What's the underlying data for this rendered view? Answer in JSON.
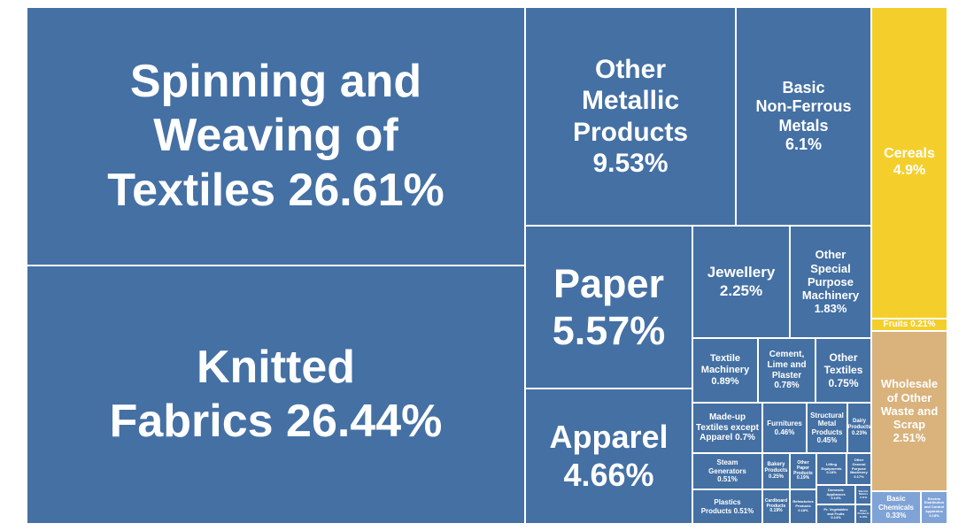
{
  "chart_data": {
    "type": "treemap",
    "unit": "%",
    "colors": {
      "manufacturing": "#4470a4",
      "agriculture": "#f4cf2c",
      "trade": "#d9b27c",
      "chemicals": "#7fa3d7"
    },
    "tiles": [
      {
        "id": "spinning",
        "label": "Spinning and\nWeaving of\nTextiles 26.61%",
        "value": 26.61,
        "group": "manufacturing"
      },
      {
        "id": "knitted",
        "label": "Knitted\nFabrics 26.44%",
        "value": 26.44,
        "group": "manufacturing"
      },
      {
        "id": "other-metallic",
        "label": "Other\nMetallic\nProducts\n9.53%",
        "value": 9.53,
        "group": "manufacturing"
      },
      {
        "id": "basic-non-ferrous",
        "label": "Basic\nNon-Ferrous\nMetals\n6.1%",
        "value": 6.1,
        "group": "manufacturing"
      },
      {
        "id": "paper",
        "label": "Paper\n5.57%",
        "value": 5.57,
        "group": "manufacturing"
      },
      {
        "id": "apparel",
        "label": "Apparel\n4.66%",
        "value": 4.66,
        "group": "manufacturing"
      },
      {
        "id": "jewellery",
        "label": "Jewellery\n2.25%",
        "value": 2.25,
        "group": "manufacturing"
      },
      {
        "id": "special-machinery",
        "label": "Other\nSpecial\nPurpose\nMachinery\n1.83%",
        "value": 1.83,
        "group": "manufacturing"
      },
      {
        "id": "textile-machinery",
        "label": "Textile\nMachinery\n0.89%",
        "value": 0.89,
        "group": "manufacturing"
      },
      {
        "id": "cement",
        "label": "Cement,\nLime and\nPlaster\n0.78%",
        "value": 0.78,
        "group": "manufacturing"
      },
      {
        "id": "other-textiles",
        "label": "Other\nTextiles\n0.75%",
        "value": 0.75,
        "group": "manufacturing"
      },
      {
        "id": "made-up",
        "label": "Made-up\nTextiles except\nApparel 0.7%",
        "value": 0.7,
        "group": "manufacturing"
      },
      {
        "id": "furnitures",
        "label": "Furnitures\n0.46%",
        "value": 0.46,
        "group": "manufacturing"
      },
      {
        "id": "structural-metal",
        "label": "Structural\nMetal\nProducts\n0.45%",
        "value": 0.45,
        "group": "manufacturing"
      },
      {
        "id": "dairy",
        "label": "Dairy\nProducts\n0.23%",
        "value": 0.23,
        "group": "manufacturing"
      },
      {
        "id": "steam",
        "label": "Steam\nGenerators\n0.51%",
        "value": 0.51,
        "group": "manufacturing"
      },
      {
        "id": "plastics",
        "label": "Plastics\nProducts 0.51%",
        "value": 0.51,
        "group": "manufacturing"
      },
      {
        "id": "bakery",
        "label": "Bakery\nProducts\n0.25%",
        "value": 0.25,
        "group": "manufacturing"
      },
      {
        "id": "other-paper",
        "label": "Other\nPaper\nProducts\n0.19%",
        "value": 0.19,
        "group": "manufacturing"
      },
      {
        "id": "lifting",
        "label": "Lifting\nEquipments\n0.18%",
        "value": 0.18,
        "group": "manufacturing"
      },
      {
        "id": "general-machinery",
        "label": "Other\nGeneral\nPurpose\nMachinery\n0.17%",
        "value": 0.17,
        "group": "manufacturing"
      },
      {
        "id": "cardboard",
        "label": "Cardboard\nProducts\n0.19%",
        "value": 0.19,
        "group": "manufacturing"
      },
      {
        "id": "refractories",
        "label": "Refractories\nProducts\n0.18%",
        "value": 0.18,
        "group": "manufacturing"
      },
      {
        "id": "domestic",
        "label": "Domestic\nAppliances\n0.14%",
        "value": 0.14,
        "group": "manufacturing"
      },
      {
        "id": "veg-fruits",
        "label": "Pr. Vegetables\nand Fruits\n0.14%",
        "value": 0.14,
        "group": "manufacturing"
      },
      {
        "id": "electric-motors",
        "label": "Electric\nMotors\n0.11%",
        "value": 0.11,
        "group": "manufacturing"
      },
      {
        "id": "glass",
        "label": "Glass\nProducts\n0.10%",
        "value": 0.1,
        "group": "manufacturing"
      },
      {
        "id": "cereals",
        "label": "Cereals\n4.9%",
        "value": 4.9,
        "group": "agriculture"
      },
      {
        "id": "fruits",
        "label": "Fruits    0.21%",
        "value": 0.21,
        "group": "agriculture"
      },
      {
        "id": "wholesale",
        "label": "Wholesale\nof Other\nWaste and\nScrap\n2.51%",
        "value": 2.51,
        "group": "trade"
      },
      {
        "id": "basic-chemicals",
        "label": "Basic\nChemicals\n0.33%",
        "value": 0.33,
        "group": "chemicals"
      },
      {
        "id": "electric-distribution",
        "label": "Electric\nDistribution\nand Control\nApparatus\n0.18%",
        "value": 0.18,
        "group": "chemicals"
      }
    ]
  }
}
